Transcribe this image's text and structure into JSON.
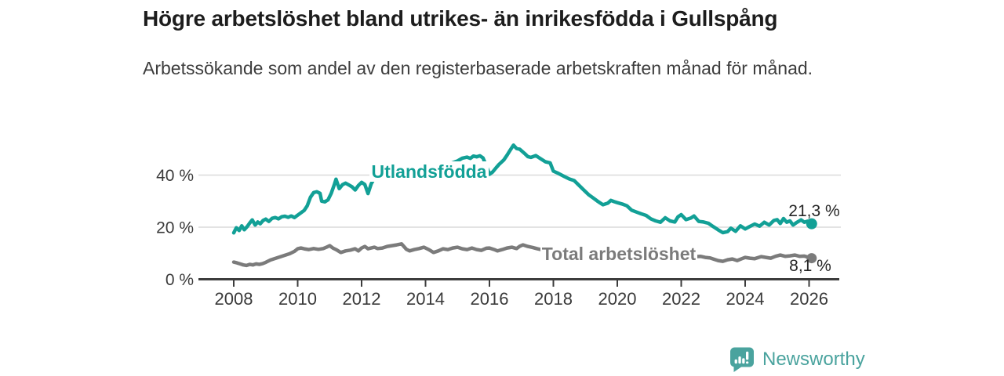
{
  "header": {
    "title": "Högre arbetslöshet bland utrikes- än inrikesfödda i Gullspång",
    "subtitle": "Arbetssökande som andel av den registerbaserade arbetskraften månad för månad."
  },
  "footer": {
    "brand": "Newsworthy",
    "brand_color": "#4aa39e",
    "logo_icon": "bar-chart-speech-bubble-icon"
  },
  "chart_data": {
    "type": "line",
    "title": "Högre arbetslöshet bland utrikes- än inrikesfödda i Gullspång",
    "subtitle": "Arbetssökande som andel av den registerbaserade arbetskraften månad för månad.",
    "unit": "%",
    "grid": "horizontal",
    "legend_position": "inline-labels",
    "x_axis": {
      "range": [
        2007.4,
        2026.9
      ],
      "ticks": [
        {
          "v": 2008,
          "label": "2008"
        },
        {
          "v": 2010,
          "label": "2010"
        },
        {
          "v": 2012,
          "label": "2012"
        },
        {
          "v": 2014,
          "label": "2014"
        },
        {
          "v": 2016,
          "label": "2016"
        },
        {
          "v": 2018,
          "label": "2018"
        },
        {
          "v": 2020,
          "label": "2020"
        },
        {
          "v": 2022,
          "label": "2022"
        },
        {
          "v": 2024,
          "label": "2024"
        },
        {
          "v": 2026,
          "label": "2026"
        }
      ]
    },
    "y_axis": {
      "range": [
        0,
        56
      ],
      "ticks": [
        {
          "v": 0,
          "label": "0 %"
        },
        {
          "v": 20,
          "label": "20 %"
        },
        {
          "v": 40,
          "label": "40 %"
        }
      ]
    },
    "series": [
      {
        "name": "Utlandsfödda",
        "color": "#12a096",
        "end_label": "21,3 %",
        "end_value": 21.3,
        "points": [
          [
            2008.0,
            17.8
          ],
          [
            2008.08,
            19.8
          ],
          [
            2008.17,
            18.7
          ],
          [
            2008.25,
            20.5
          ],
          [
            2008.33,
            19.0
          ],
          [
            2008.42,
            20.2
          ],
          [
            2008.5,
            21.6
          ],
          [
            2008.58,
            22.8
          ],
          [
            2008.67,
            20.8
          ],
          [
            2008.75,
            22.0
          ],
          [
            2008.83,
            21.3
          ],
          [
            2008.92,
            22.6
          ],
          [
            2009.0,
            23.1
          ],
          [
            2009.1,
            22.2
          ],
          [
            2009.2,
            23.4
          ],
          [
            2009.3,
            23.7
          ],
          [
            2009.4,
            23.2
          ],
          [
            2009.5,
            24.0
          ],
          [
            2009.6,
            24.2
          ],
          [
            2009.7,
            23.8
          ],
          [
            2009.8,
            24.3
          ],
          [
            2009.9,
            23.7
          ],
          [
            2010.0,
            24.6
          ],
          [
            2010.1,
            25.5
          ],
          [
            2010.2,
            26.4
          ],
          [
            2010.3,
            28.2
          ],
          [
            2010.4,
            31.5
          ],
          [
            2010.5,
            33.3
          ],
          [
            2010.6,
            33.6
          ],
          [
            2010.7,
            33.0
          ],
          [
            2010.75,
            30.0
          ],
          [
            2010.85,
            29.7
          ],
          [
            2010.95,
            30.5
          ],
          [
            2011.05,
            33.0
          ],
          [
            2011.15,
            36.5
          ],
          [
            2011.2,
            38.4
          ],
          [
            2011.3,
            34.8
          ],
          [
            2011.4,
            36.3
          ],
          [
            2011.5,
            36.9
          ],
          [
            2011.6,
            36.2
          ],
          [
            2011.7,
            35.5
          ],
          [
            2011.8,
            34.3
          ],
          [
            2011.9,
            36.0
          ],
          [
            2012.0,
            37.2
          ],
          [
            2012.1,
            36.4
          ],
          [
            2012.2,
            32.9
          ],
          [
            2012.3,
            36.6
          ],
          [
            2012.4,
            38.8
          ],
          [
            2012.55,
            39.4
          ],
          [
            2012.7,
            40.2
          ],
          [
            2012.85,
            40.7
          ],
          [
            2013.0,
            41.2
          ],
          [
            2013.2,
            41.8
          ],
          [
            2013.4,
            42.3
          ],
          [
            2013.6,
            41.8
          ],
          [
            2013.8,
            42.6
          ],
          [
            2014.0,
            43.0
          ],
          [
            2014.2,
            43.5
          ],
          [
            2014.4,
            43.9
          ],
          [
            2014.6,
            43.6
          ],
          [
            2014.8,
            44.5
          ],
          [
            2015.0,
            45.4
          ],
          [
            2015.15,
            46.5
          ],
          [
            2015.3,
            46.9
          ],
          [
            2015.4,
            46.4
          ],
          [
            2015.5,
            47.3
          ],
          [
            2015.6,
            47.0
          ],
          [
            2015.7,
            47.4
          ],
          [
            2015.8,
            46.6
          ],
          [
            2015.9,
            43.6
          ],
          [
            2016.0,
            40.3
          ],
          [
            2016.1,
            41.2
          ],
          [
            2016.2,
            42.7
          ],
          [
            2016.3,
            44.1
          ],
          [
            2016.45,
            45.8
          ],
          [
            2016.55,
            47.6
          ],
          [
            2016.65,
            49.6
          ],
          [
            2016.75,
            51.5
          ],
          [
            2016.85,
            50.2
          ],
          [
            2016.95,
            49.9
          ],
          [
            2017.1,
            48.3
          ],
          [
            2017.2,
            47.1
          ],
          [
            2017.3,
            46.8
          ],
          [
            2017.45,
            47.5
          ],
          [
            2017.6,
            46.3
          ],
          [
            2017.75,
            45.1
          ],
          [
            2017.9,
            44.7
          ],
          [
            2018.0,
            41.5
          ],
          [
            2018.15,
            40.7
          ],
          [
            2018.35,
            39.4
          ],
          [
            2018.5,
            38.5
          ],
          [
            2018.65,
            37.9
          ],
          [
            2018.8,
            36.1
          ],
          [
            2018.95,
            34.3
          ],
          [
            2019.1,
            32.5
          ],
          [
            2019.25,
            31.2
          ],
          [
            2019.4,
            29.8
          ],
          [
            2019.55,
            28.6
          ],
          [
            2019.7,
            29.2
          ],
          [
            2019.8,
            30.3
          ],
          [
            2019.9,
            29.8
          ],
          [
            2020.0,
            29.4
          ],
          [
            2020.15,
            28.9
          ],
          [
            2020.3,
            28.2
          ],
          [
            2020.45,
            26.5
          ],
          [
            2020.6,
            25.8
          ],
          [
            2020.75,
            25.1
          ],
          [
            2020.9,
            24.5
          ],
          [
            2021.05,
            23.2
          ],
          [
            2021.2,
            22.4
          ],
          [
            2021.35,
            21.9
          ],
          [
            2021.5,
            23.6
          ],
          [
            2021.65,
            22.4
          ],
          [
            2021.8,
            22.0
          ],
          [
            2021.9,
            24.0
          ],
          [
            2022.0,
            24.8
          ],
          [
            2022.15,
            22.9
          ],
          [
            2022.3,
            23.5
          ],
          [
            2022.4,
            24.3
          ],
          [
            2022.55,
            22.2
          ],
          [
            2022.7,
            22.0
          ],
          [
            2022.85,
            21.5
          ],
          [
            2023.0,
            20.2
          ],
          [
            2023.15,
            19.0
          ],
          [
            2023.3,
            17.9
          ],
          [
            2023.45,
            18.3
          ],
          [
            2023.55,
            19.6
          ],
          [
            2023.7,
            18.4
          ],
          [
            2023.85,
            20.5
          ],
          [
            2024.0,
            19.3
          ],
          [
            2024.15,
            20.3
          ],
          [
            2024.3,
            21.2
          ],
          [
            2024.45,
            20.4
          ],
          [
            2024.6,
            21.9
          ],
          [
            2024.75,
            20.8
          ],
          [
            2024.9,
            22.6
          ],
          [
            2025.0,
            22.9
          ],
          [
            2025.1,
            21.4
          ],
          [
            2025.2,
            23.3
          ],
          [
            2025.3,
            21.9
          ],
          [
            2025.4,
            22.4
          ],
          [
            2025.5,
            20.8
          ],
          [
            2025.6,
            21.7
          ],
          [
            2025.75,
            22.8
          ],
          [
            2025.85,
            21.9
          ],
          [
            2025.95,
            22.3
          ],
          [
            2026.08,
            21.3
          ]
        ]
      },
      {
        "name": "Total arbetslöshet",
        "color": "#7b7b7b",
        "end_label": "8,1 %",
        "end_value": 8.1,
        "points": [
          [
            2008.0,
            6.6
          ],
          [
            2008.1,
            6.3
          ],
          [
            2008.2,
            5.9
          ],
          [
            2008.3,
            5.5
          ],
          [
            2008.4,
            5.3
          ],
          [
            2008.5,
            5.7
          ],
          [
            2008.6,
            5.5
          ],
          [
            2008.7,
            5.9
          ],
          [
            2008.8,
            5.7
          ],
          [
            2008.9,
            6.0
          ],
          [
            2009.0,
            6.5
          ],
          [
            2009.15,
            7.4
          ],
          [
            2009.3,
            8.0
          ],
          [
            2009.45,
            8.6
          ],
          [
            2009.6,
            9.2
          ],
          [
            2009.75,
            9.8
          ],
          [
            2009.9,
            10.7
          ],
          [
            2010.0,
            11.7
          ],
          [
            2010.1,
            12.0
          ],
          [
            2010.2,
            11.7
          ],
          [
            2010.35,
            11.4
          ],
          [
            2010.5,
            11.8
          ],
          [
            2010.65,
            11.5
          ],
          [
            2010.8,
            11.8
          ],
          [
            2010.9,
            12.3
          ],
          [
            2011.0,
            12.9
          ],
          [
            2011.1,
            12.0
          ],
          [
            2011.2,
            11.4
          ],
          [
            2011.35,
            10.3
          ],
          [
            2011.5,
            10.9
          ],
          [
            2011.65,
            11.2
          ],
          [
            2011.8,
            11.7
          ],
          [
            2011.9,
            10.9
          ],
          [
            2012.0,
            12.0
          ],
          [
            2012.1,
            12.6
          ],
          [
            2012.2,
            11.7
          ],
          [
            2012.3,
            12.0
          ],
          [
            2012.4,
            12.3
          ],
          [
            2012.5,
            11.8
          ],
          [
            2012.65,
            12.0
          ],
          [
            2012.8,
            12.6
          ],
          [
            2012.95,
            12.9
          ],
          [
            2013.1,
            13.2
          ],
          [
            2013.25,
            13.6
          ],
          [
            2013.4,
            11.5
          ],
          [
            2013.5,
            10.9
          ],
          [
            2013.65,
            11.4
          ],
          [
            2013.8,
            11.8
          ],
          [
            2013.95,
            12.3
          ],
          [
            2014.1,
            11.4
          ],
          [
            2014.25,
            10.3
          ],
          [
            2014.4,
            10.9
          ],
          [
            2014.55,
            11.7
          ],
          [
            2014.7,
            11.4
          ],
          [
            2014.85,
            12.0
          ],
          [
            2015.0,
            12.3
          ],
          [
            2015.15,
            11.7
          ],
          [
            2015.3,
            11.4
          ],
          [
            2015.45,
            12.0
          ],
          [
            2015.6,
            11.4
          ],
          [
            2015.75,
            11.1
          ],
          [
            2015.9,
            11.9
          ],
          [
            2016.0,
            12.0
          ],
          [
            2016.15,
            11.4
          ],
          [
            2016.25,
            10.9
          ],
          [
            2016.4,
            11.4
          ],
          [
            2016.55,
            12.0
          ],
          [
            2016.7,
            12.3
          ],
          [
            2016.85,
            11.8
          ],
          [
            2016.95,
            12.7
          ],
          [
            2017.05,
            13.2
          ],
          [
            2017.2,
            12.6
          ],
          [
            2017.35,
            12.2
          ],
          [
            2017.5,
            11.7
          ],
          [
            2017.65,
            11.3
          ],
          [
            2017.8,
            10.8
          ],
          [
            2017.95,
            10.6
          ],
          [
            2018.1,
            10.8
          ],
          [
            2018.3,
            10.5
          ],
          [
            2018.6,
            10.2
          ],
          [
            2018.9,
            10.0
          ],
          [
            2019.2,
            9.8
          ],
          [
            2019.5,
            9.6
          ],
          [
            2019.8,
            9.9
          ],
          [
            2020.1,
            10.2
          ],
          [
            2020.4,
            9.9
          ],
          [
            2020.7,
            9.6
          ],
          [
            2021.0,
            9.3
          ],
          [
            2021.3,
            9.0
          ],
          [
            2021.6,
            8.8
          ],
          [
            2021.9,
            8.7
          ],
          [
            2022.2,
            8.8
          ],
          [
            2022.45,
            8.7
          ],
          [
            2022.6,
            8.8
          ],
          [
            2022.75,
            8.4
          ],
          [
            2022.9,
            8.2
          ],
          [
            2023.0,
            7.8
          ],
          [
            2023.15,
            7.2
          ],
          [
            2023.3,
            6.9
          ],
          [
            2023.45,
            7.5
          ],
          [
            2023.6,
            7.8
          ],
          [
            2023.75,
            7.2
          ],
          [
            2023.9,
            7.9
          ],
          [
            2024.0,
            8.4
          ],
          [
            2024.15,
            8.1
          ],
          [
            2024.3,
            7.9
          ],
          [
            2024.5,
            8.7
          ],
          [
            2024.65,
            8.4
          ],
          [
            2024.8,
            8.1
          ],
          [
            2024.95,
            8.8
          ],
          [
            2025.1,
            9.3
          ],
          [
            2025.25,
            8.8
          ],
          [
            2025.4,
            9.0
          ],
          [
            2025.55,
            9.3
          ],
          [
            2025.7,
            8.8
          ],
          [
            2025.85,
            8.9
          ],
          [
            2026.08,
            8.1
          ]
        ]
      }
    ]
  }
}
